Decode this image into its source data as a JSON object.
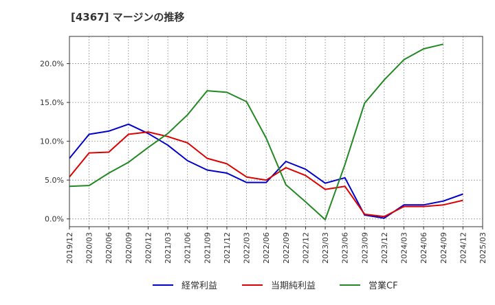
{
  "chart_data": {
    "type": "line",
    "title": "[4367]  マージンの推移",
    "xlabel": "",
    "ylabel": "",
    "x": [
      "2019/12",
      "2020/03",
      "2020/06",
      "2020/09",
      "2020/12",
      "2021/03",
      "2021/06",
      "2021/09",
      "2021/12",
      "2022/03",
      "2022/06",
      "2022/09",
      "2022/12",
      "2023/03",
      "2023/06",
      "2023/09",
      "2023/12",
      "2024/03",
      "2024/06",
      "2024/09",
      "2024/12",
      "2025/03"
    ],
    "ylim": [
      -1.0,
      23.5
    ],
    "yticks": [
      0,
      5,
      10,
      15,
      20
    ],
    "ytick_labels": [
      "0.0%",
      "5.0%",
      "10.0%",
      "15.0%",
      "20.0%"
    ],
    "grid": true,
    "legend_position": "bottom",
    "series": [
      {
        "name": "経常利益",
        "color": "#0000cc",
        "values": [
          7.8,
          10.9,
          11.3,
          12.2,
          11.0,
          9.5,
          7.5,
          6.3,
          5.9,
          4.7,
          4.7,
          7.4,
          6.4,
          4.6,
          5.3,
          0.5,
          0.1,
          1.8,
          1.8,
          2.3,
          3.2,
          null
        ]
      },
      {
        "name": "当期純利益",
        "color": "#dd0000",
        "values": [
          5.4,
          8.5,
          8.6,
          10.9,
          11.2,
          10.6,
          9.8,
          7.8,
          7.1,
          5.4,
          5.0,
          6.6,
          5.6,
          3.8,
          4.2,
          0.6,
          0.3,
          1.6,
          1.6,
          1.8,
          2.4,
          null
        ]
      },
      {
        "name": "営業CF",
        "color": "#228822",
        "values": [
          4.2,
          4.3,
          5.9,
          7.3,
          9.2,
          11.0,
          13.4,
          16.5,
          16.3,
          15.1,
          10.4,
          4.4,
          2.2,
          -0.1,
          7.0,
          14.9,
          17.9,
          20.5,
          21.9,
          22.5,
          null,
          null
        ]
      }
    ]
  }
}
